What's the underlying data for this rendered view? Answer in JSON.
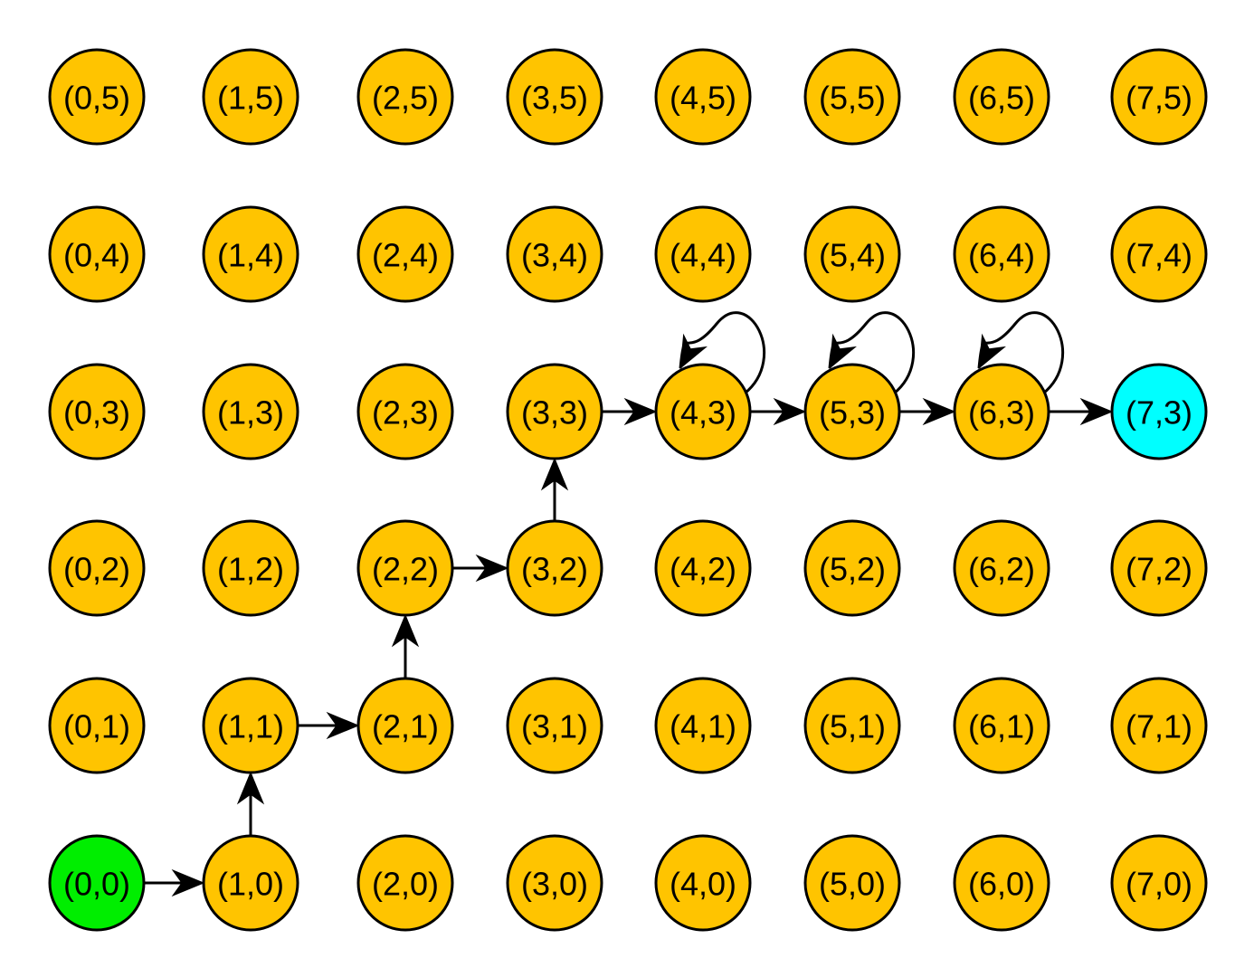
{
  "colors": {
    "default_node": "#ffc400",
    "start_node": "#00ee00",
    "goal_node": "#00ffff"
  },
  "grid": {
    "cols": 8,
    "rows": 6
  },
  "nodes": [
    {
      "col": 0,
      "row": 0,
      "label": "(0,0)",
      "status": "start"
    },
    {
      "col": 1,
      "row": 0,
      "label": "(1,0)",
      "status": "default"
    },
    {
      "col": 2,
      "row": 0,
      "label": "(2,0)",
      "status": "default"
    },
    {
      "col": 3,
      "row": 0,
      "label": "(3,0)",
      "status": "default"
    },
    {
      "col": 4,
      "row": 0,
      "label": "(4,0)",
      "status": "default"
    },
    {
      "col": 5,
      "row": 0,
      "label": "(5,0)",
      "status": "default"
    },
    {
      "col": 6,
      "row": 0,
      "label": "(6,0)",
      "status": "default"
    },
    {
      "col": 7,
      "row": 0,
      "label": "(7,0)",
      "status": "default"
    },
    {
      "col": 0,
      "row": 1,
      "label": "(0,1)",
      "status": "default"
    },
    {
      "col": 1,
      "row": 1,
      "label": "(1,1)",
      "status": "default"
    },
    {
      "col": 2,
      "row": 1,
      "label": "(2,1)",
      "status": "default"
    },
    {
      "col": 3,
      "row": 1,
      "label": "(3,1)",
      "status": "default"
    },
    {
      "col": 4,
      "row": 1,
      "label": "(4,1)",
      "status": "default"
    },
    {
      "col": 5,
      "row": 1,
      "label": "(5,1)",
      "status": "default"
    },
    {
      "col": 6,
      "row": 1,
      "label": "(6,1)",
      "status": "default"
    },
    {
      "col": 7,
      "row": 1,
      "label": "(7,1)",
      "status": "default"
    },
    {
      "col": 0,
      "row": 2,
      "label": "(0,2)",
      "status": "default"
    },
    {
      "col": 1,
      "row": 2,
      "label": "(1,2)",
      "status": "default"
    },
    {
      "col": 2,
      "row": 2,
      "label": "(2,2)",
      "status": "default"
    },
    {
      "col": 3,
      "row": 2,
      "label": "(3,2)",
      "status": "default"
    },
    {
      "col": 4,
      "row": 2,
      "label": "(4,2)",
      "status": "default"
    },
    {
      "col": 5,
      "row": 2,
      "label": "(5,2)",
      "status": "default"
    },
    {
      "col": 6,
      "row": 2,
      "label": "(6,2)",
      "status": "default"
    },
    {
      "col": 7,
      "row": 2,
      "label": "(7,2)",
      "status": "default"
    },
    {
      "col": 0,
      "row": 3,
      "label": "(0,3)",
      "status": "default"
    },
    {
      "col": 1,
      "row": 3,
      "label": "(1,3)",
      "status": "default"
    },
    {
      "col": 2,
      "row": 3,
      "label": "(2,3)",
      "status": "default"
    },
    {
      "col": 3,
      "row": 3,
      "label": "(3,3)",
      "status": "default"
    },
    {
      "col": 4,
      "row": 3,
      "label": "(4,3)",
      "status": "default"
    },
    {
      "col": 5,
      "row": 3,
      "label": "(5,3)",
      "status": "default"
    },
    {
      "col": 6,
      "row": 3,
      "label": "(6,3)",
      "status": "default"
    },
    {
      "col": 7,
      "row": 3,
      "label": "(7,3)",
      "status": "goal"
    },
    {
      "col": 0,
      "row": 4,
      "label": "(0,4)",
      "status": "default"
    },
    {
      "col": 1,
      "row": 4,
      "label": "(1,4)",
      "status": "default"
    },
    {
      "col": 2,
      "row": 4,
      "label": "(2,4)",
      "status": "default"
    },
    {
      "col": 3,
      "row": 4,
      "label": "(3,4)",
      "status": "default"
    },
    {
      "col": 4,
      "row": 4,
      "label": "(4,4)",
      "status": "default"
    },
    {
      "col": 5,
      "row": 4,
      "label": "(5,4)",
      "status": "default"
    },
    {
      "col": 6,
      "row": 4,
      "label": "(6,4)",
      "status": "default"
    },
    {
      "col": 7,
      "row": 4,
      "label": "(7,4)",
      "status": "default"
    },
    {
      "col": 0,
      "row": 5,
      "label": "(0,5)",
      "status": "default"
    },
    {
      "col": 1,
      "row": 5,
      "label": "(1,5)",
      "status": "default"
    },
    {
      "col": 2,
      "row": 5,
      "label": "(2,5)",
      "status": "default"
    },
    {
      "col": 3,
      "row": 5,
      "label": "(3,5)",
      "status": "default"
    },
    {
      "col": 4,
      "row": 5,
      "label": "(4,5)",
      "status": "default"
    },
    {
      "col": 5,
      "row": 5,
      "label": "(5,5)",
      "status": "default"
    },
    {
      "col": 6,
      "row": 5,
      "label": "(6,5)",
      "status": "default"
    },
    {
      "col": 7,
      "row": 5,
      "label": "(7,5)",
      "status": "default"
    }
  ],
  "edges": [
    {
      "from": "(0,0)",
      "to": "(1,0)"
    },
    {
      "from": "(1,0)",
      "to": "(1,1)"
    },
    {
      "from": "(1,1)",
      "to": "(2,1)"
    },
    {
      "from": "(2,1)",
      "to": "(2,2)"
    },
    {
      "from": "(2,2)",
      "to": "(3,2)"
    },
    {
      "from": "(3,2)",
      "to": "(3,3)"
    },
    {
      "from": "(3,3)",
      "to": "(4,3)"
    },
    {
      "from": "(4,3)",
      "to": "(4,3)"
    },
    {
      "from": "(4,3)",
      "to": "(5,3)"
    },
    {
      "from": "(5,3)",
      "to": "(5,3)"
    },
    {
      "from": "(5,3)",
      "to": "(6,3)"
    },
    {
      "from": "(6,3)",
      "to": "(6,3)"
    },
    {
      "from": "(6,3)",
      "to": "(7,3)"
    }
  ]
}
